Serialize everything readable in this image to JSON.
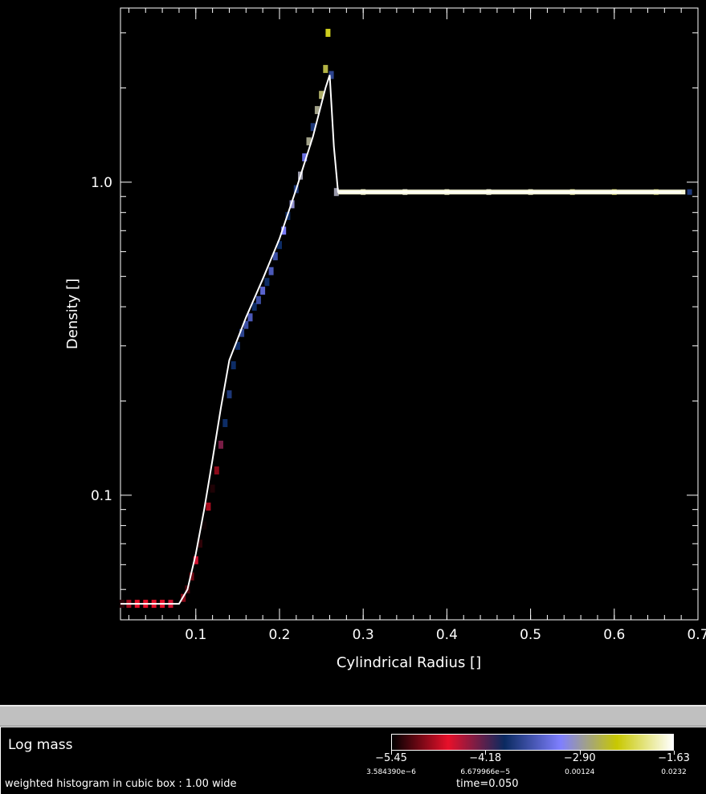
{
  "chart_data": {
    "type": "heatmap",
    "title": "",
    "xlabel": "Cylindrical Radius []",
    "ylabel": "Density []",
    "xlim": [
      0.01,
      0.7
    ],
    "ylim": [
      0.04,
      3.6
    ],
    "yscale": "log",
    "x_ticks": [
      {
        "value": 0.1,
        "label": "0.1"
      },
      {
        "value": 0.2,
        "label": "0.2"
      },
      {
        "value": 0.3,
        "label": "0.3"
      },
      {
        "value": 0.4,
        "label": "0.4"
      },
      {
        "value": 0.5,
        "label": "0.5"
      },
      {
        "value": 0.6,
        "label": "0.6"
      },
      {
        "value": 0.7,
        "label": "0.7"
      }
    ],
    "y_ticks": [
      {
        "value": 0.1,
        "label": "0.1"
      },
      {
        "value": 1.0,
        "label": "1.0"
      }
    ],
    "grid": false,
    "profile_line": {
      "color": "#ffffff",
      "x": [
        0.01,
        0.08,
        0.09,
        0.1,
        0.11,
        0.12,
        0.13,
        0.14,
        0.16,
        0.18,
        0.2,
        0.22,
        0.24,
        0.255,
        0.26,
        0.265,
        0.27,
        0.68
      ],
      "y": [
        0.045,
        0.045,
        0.05,
        0.065,
        0.09,
        0.13,
        0.19,
        0.27,
        0.37,
        0.49,
        0.66,
        0.95,
        1.4,
        2.0,
        2.2,
        1.3,
        0.93,
        0.93
      ]
    },
    "histogram": {
      "x": [
        0.012,
        0.02,
        0.03,
        0.04,
        0.05,
        0.06,
        0.07,
        0.085,
        0.09,
        0.095,
        0.1,
        0.105,
        0.11,
        0.115,
        0.12,
        0.125,
        0.13,
        0.135,
        0.14,
        0.145,
        0.15,
        0.155,
        0.16,
        0.165,
        0.17,
        0.175,
        0.18,
        0.185,
        0.19,
        0.195,
        0.2,
        0.205,
        0.21,
        0.215,
        0.22,
        0.225,
        0.23,
        0.235,
        0.24,
        0.245,
        0.25,
        0.255,
        0.258,
        0.262,
        0.268,
        0.3,
        0.35,
        0.4,
        0.45,
        0.5,
        0.55,
        0.6,
        0.65,
        0.69
      ],
      "y": [
        0.045,
        0.045,
        0.045,
        0.045,
        0.045,
        0.045,
        0.045,
        0.047,
        0.05,
        0.055,
        0.062,
        0.07,
        0.08,
        0.092,
        0.105,
        0.12,
        0.145,
        0.17,
        0.21,
        0.26,
        0.3,
        0.33,
        0.35,
        0.37,
        0.4,
        0.42,
        0.45,
        0.48,
        0.52,
        0.58,
        0.63,
        0.7,
        0.78,
        0.85,
        0.95,
        1.05,
        1.2,
        1.35,
        1.5,
        1.7,
        1.9,
        2.3,
        3.0,
        2.2,
        0.93,
        0.93,
        0.93,
        0.93,
        0.93,
        0.93,
        0.93,
        0.93,
        0.93,
        0.93
      ],
      "log_mass": [
        -5.3,
        -4.9,
        -4.7,
        -4.7,
        -4.7,
        -4.7,
        -4.6,
        -5.0,
        -5.2,
        -5.1,
        -4.6,
        -5.3,
        -5.4,
        -4.9,
        -5.35,
        -5.0,
        -4.3,
        -3.9,
        -3.8,
        -3.9,
        -3.9,
        -3.7,
        -3.6,
        -3.5,
        -3.9,
        -3.6,
        -3.4,
        -3.9,
        -3.5,
        -3.6,
        -3.9,
        -3.2,
        -3.9,
        -3.0,
        -3.8,
        -2.9,
        -3.3,
        -2.8,
        -3.8,
        -2.8,
        -2.7,
        -2.6,
        -2.3,
        -3.7,
        -2.9,
        -1.8,
        -1.7,
        -1.8,
        -1.7,
        -1.8,
        -2.0,
        -2.2,
        -2.6,
        -3.8
      ]
    }
  },
  "bottom_panel": {
    "title": "Log mass",
    "caption": "weighted histogram in cubic box : 1.00  wide",
    "time_label": "time=0.050",
    "colorbar": {
      "min": -5.45,
      "max": -1.63,
      "stops": [
        "#000000",
        "#e8102a",
        "#0a2a60",
        "#7f7fff",
        "#c8c800",
        "#ffffff"
      ],
      "ticks": [
        {
          "label": "−5.45",
          "sub": "3.584390e−6",
          "pos": 0.0
        },
        {
          "label": "−4.18",
          "sub": "6.679966e−5",
          "pos": 0.333
        },
        {
          "label": "−2.90",
          "sub": "0.00124",
          "pos": 0.667
        },
        {
          "label": "−1.63",
          "sub": "0.0232",
          "pos": 1.0
        }
      ]
    }
  }
}
